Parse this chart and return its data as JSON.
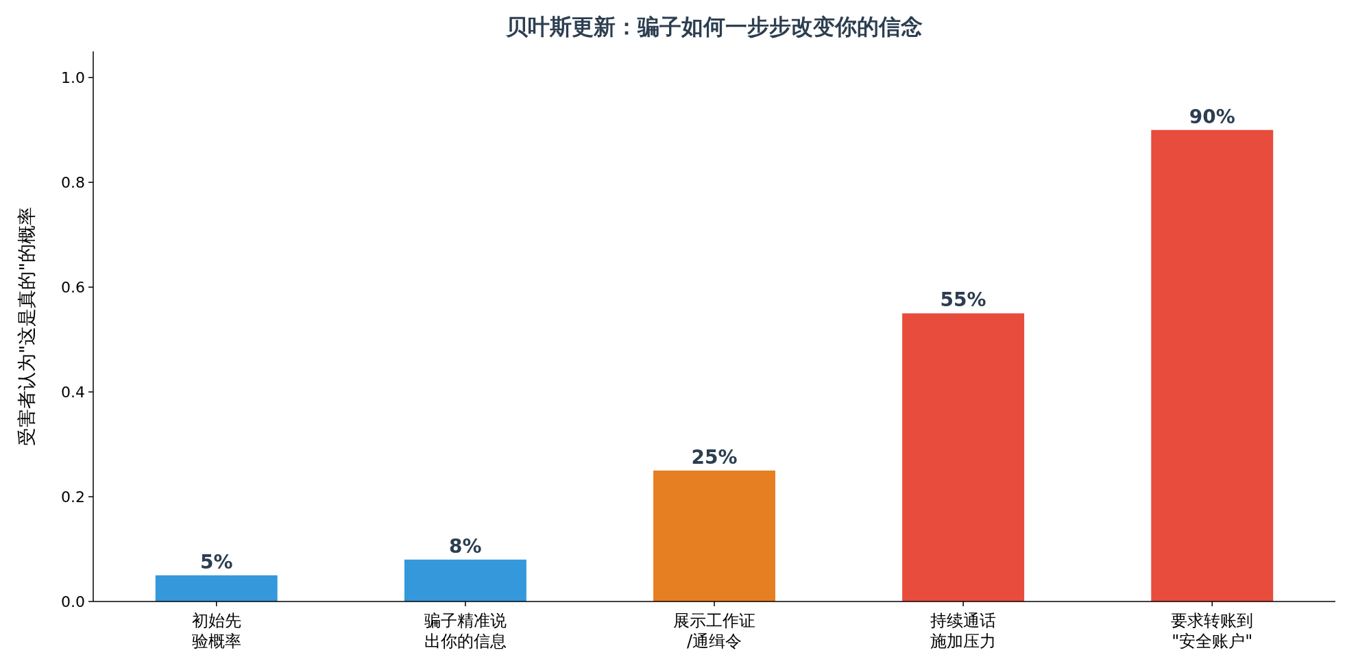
{
  "chart_data": {
    "type": "bar",
    "title": "贝叶斯更新：骗子如何一步步改变你的信念",
    "ylabel": "受害者认为\"这是真的\"的概率",
    "categories": [
      "初始先验概率",
      "骗子精准说出你的信息",
      "展示工作证\n/通缉令",
      "持续通话施加压力",
      "要求转账到\n\"安全账户\""
    ],
    "values": [
      0.05,
      0.08,
      0.25,
      0.55,
      0.9
    ],
    "colors": [
      "#3498db",
      "#3498db",
      "#e67e22",
      "#e74c3c",
      "#e74c3c"
    ],
    "value_labels": [
      "5%",
      "8%",
      "25%",
      "55%",
      "90%"
    ],
    "ylim": [
      0,
      1.05
    ],
    "yticks": [
      {
        "value": 0,
        "label": "0.0"
      },
      {
        "value": 0.2,
        "label": "0.2"
      },
      {
        "value": 0.4,
        "label": "0.4"
      },
      {
        "value": 0.6,
        "label": "0.6"
      },
      {
        "value": 0.8,
        "label": "0.8"
      },
      {
        "value": 1,
        "label": "1.0"
      }
    ],
    "grid": false
  }
}
